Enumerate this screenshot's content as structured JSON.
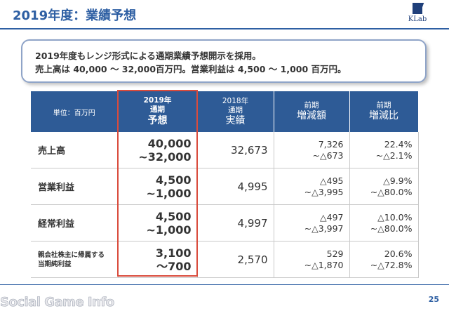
{
  "header": {
    "title": "2019年度：業績予想",
    "logo_text": "KLab",
    "brand_color": "#2e5fa3"
  },
  "callout": {
    "line1": "2019年度もレンジ形式による通期業績予想開示を採用。",
    "line2": "売上高は 40,000 ～ 32,000百万円。営業利益は 4,500 ～ 1,000 百万円。"
  },
  "table": {
    "unit_label": "単位：百万円",
    "columns": [
      {
        "line1": "2019年",
        "line2": "通期",
        "line3": "予想"
      },
      {
        "line1": "2018年",
        "line2": "通期",
        "line3": "実績"
      },
      {
        "line1": "前期",
        "line2": "増減額"
      },
      {
        "line1": "前期",
        "line2": "増減比"
      }
    ],
    "rows": [
      {
        "label": "売上高",
        "forecast_top": "40,000",
        "forecast_bottom": "~32,000",
        "actual": "32,673",
        "chg_amt_top": "7,326",
        "chg_amt_bottom": "~△673",
        "chg_pct_top": "22.4%",
        "chg_pct_bottom": "~△2.1%"
      },
      {
        "label": "営業利益",
        "forecast_top": "4,500",
        "forecast_bottom": "~1,000",
        "actual": "4,995",
        "chg_amt_top": "△495",
        "chg_amt_bottom": "~△3,995",
        "chg_pct_top": "△9.9%",
        "chg_pct_bottom": "~△80.0%"
      },
      {
        "label": "経常利益",
        "forecast_top": "4,500",
        "forecast_bottom": "~1,000",
        "actual": "4,997",
        "chg_amt_top": "△497",
        "chg_amt_bottom": "~△3,997",
        "chg_pct_top": "△10.0%",
        "chg_pct_bottom": "~△80.0%"
      },
      {
        "label_line1": "親会社株主に帰属する",
        "label_line2": "当期純利益",
        "forecast_top": "3,100",
        "forecast_bottom": "～700",
        "actual": "2,570",
        "chg_amt_top": "529",
        "chg_amt_bottom": "~△1,870",
        "chg_pct_top": "20.6%",
        "chg_pct_bottom": "~△72.8%"
      }
    ],
    "header_color": "#2e5b96",
    "highlight_color": "#d94b3c"
  },
  "footer": {
    "watermark": "Social Game Info",
    "page_number": "25"
  }
}
